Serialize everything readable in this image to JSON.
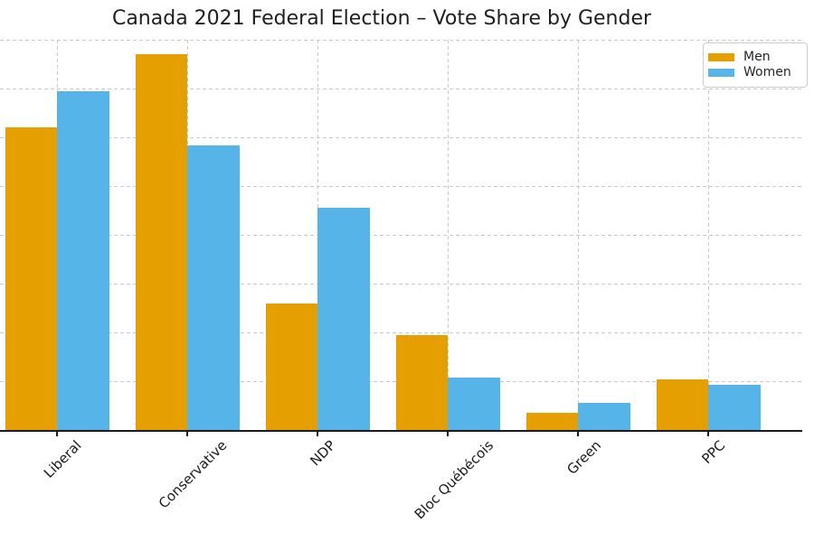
{
  "chart_data": {
    "type": "bar",
    "title": "Canada 2021 Federal Election – Vote Share by Gender",
    "categories": [
      "Liberal",
      "Conservative",
      "NDP",
      "Bloc Québécois",
      "Green",
      "PPC"
    ],
    "series": [
      {
        "name": "Men",
        "color": "#E69F00",
        "values": [
          31.0,
          38.5,
          13.0,
          9.7,
          1.8,
          5.2
        ]
      },
      {
        "name": "Women",
        "color": "#56B4E9",
        "values": [
          34.7,
          29.2,
          22.8,
          5.4,
          2.8,
          4.6
        ]
      }
    ],
    "xlabel": "",
    "ylabel": "",
    "ylim": [
      0,
      40
    ],
    "gridline_step": 5,
    "grid": "both-dashed",
    "y_tick_labels_visible": false,
    "x_tick_label_rotation_deg": 45,
    "legend_position": "upper-right",
    "colors": {
      "grid": "#c9c9c9",
      "axis": "#1a1a1a",
      "text": "#262626",
      "background": "#ffffff"
    }
  }
}
